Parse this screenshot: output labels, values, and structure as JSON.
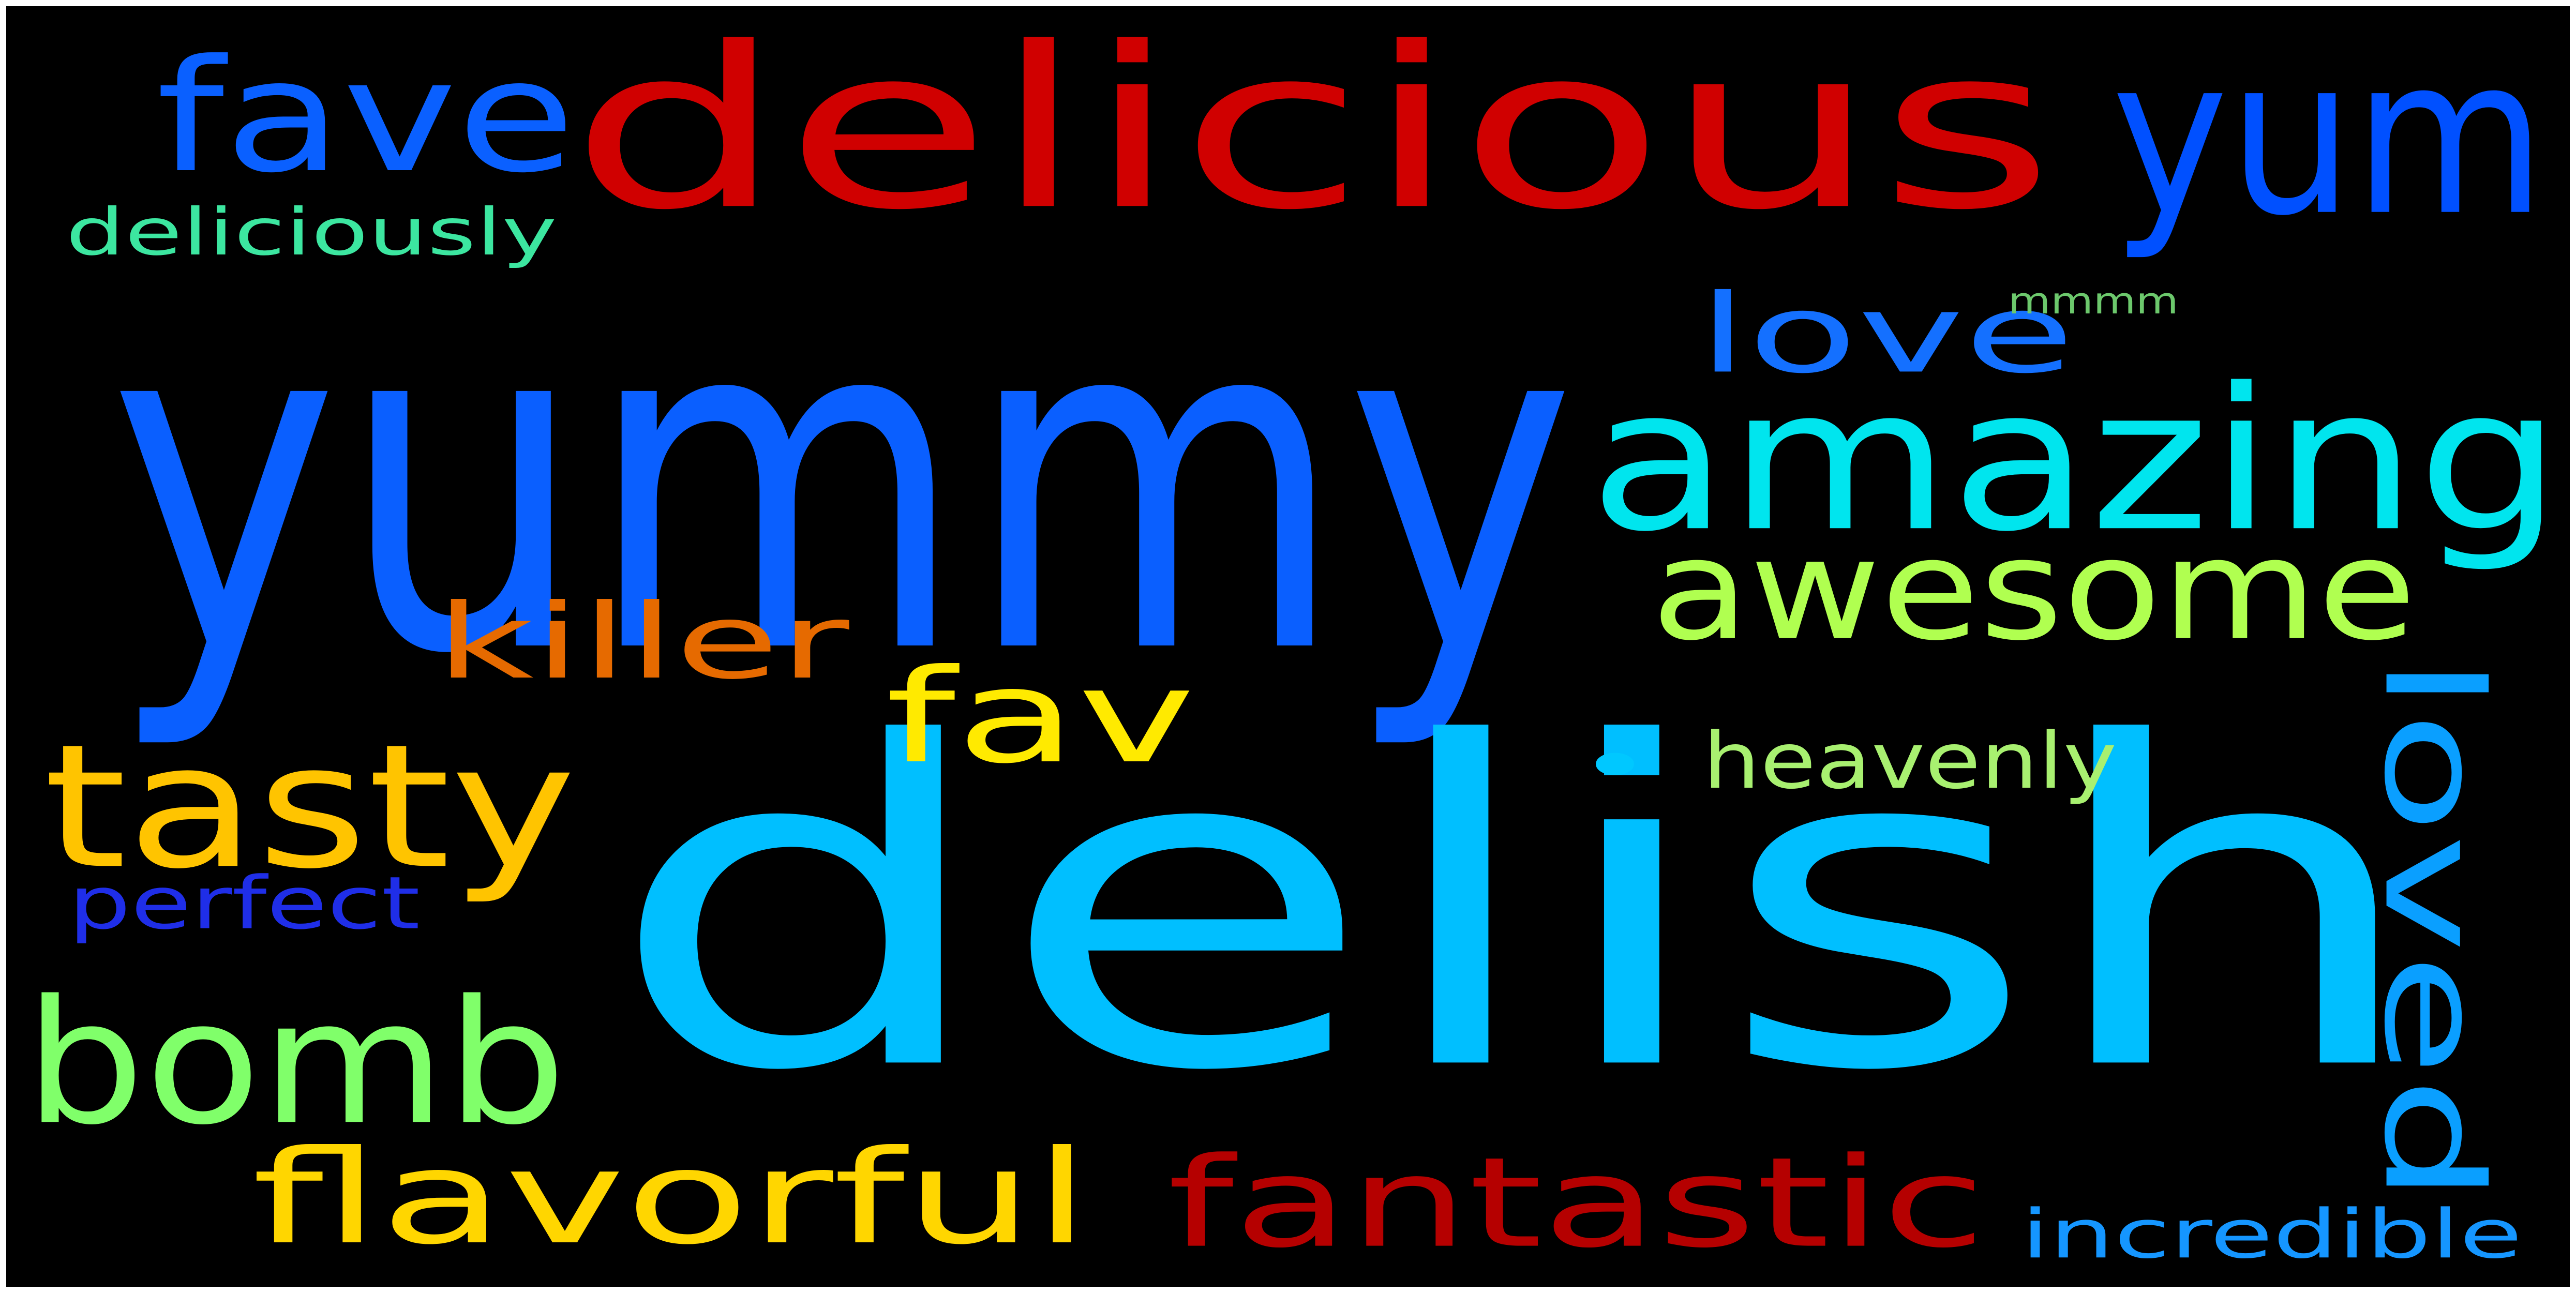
{
  "background_color": "#000000",
  "words": [
    {
      "id": "yummy",
      "text": "yummy",
      "color": "#0A5FFF"
    },
    {
      "id": "delish",
      "text": "delish",
      "color": "#00BFFF"
    },
    {
      "id": "delicious",
      "text": "delicious",
      "color": "#D00000"
    },
    {
      "id": "yum",
      "text": "yum",
      "color": "#0050FF"
    },
    {
      "id": "fave",
      "text": "fave",
      "color": "#0A60FF"
    },
    {
      "id": "amazing",
      "text": "amazing",
      "color": "#00E5EE"
    },
    {
      "id": "awesome",
      "text": "awesome",
      "color": "#B0FF50"
    },
    {
      "id": "love",
      "text": "love",
      "color": "#1470FF"
    },
    {
      "id": "loved",
      "text": "loved",
      "color": "#0A9FFF"
    },
    {
      "id": "tasty",
      "text": "tasty",
      "color": "#FFC400"
    },
    {
      "id": "bomb",
      "text": "bomb",
      "color": "#80FF6A"
    },
    {
      "id": "fav",
      "text": "fav",
      "color": "#FFEA00"
    },
    {
      "id": "flavorful",
      "text": "flavorful",
      "color": "#FFD600"
    },
    {
      "id": "fantastic",
      "text": "fantastic",
      "color": "#B50000"
    },
    {
      "id": "killer",
      "text": "killer",
      "color": "#E66A00"
    },
    {
      "id": "heavenly",
      "text": "heavenly",
      "color": "#A8F070"
    },
    {
      "id": "perfect",
      "text": "perfect",
      "color": "#1F2EE8"
    },
    {
      "id": "incredible",
      "text": "incredible",
      "color": "#1596FF"
    },
    {
      "id": "deliciously",
      "text": "deliciously",
      "color": "#3CE6A0"
    },
    {
      "id": "mmmm",
      "text": "mmmm",
      "color": "#6CC86C"
    },
    {
      "id": "dot",
      "text": "•",
      "color": "#00C8FF"
    }
  ]
}
